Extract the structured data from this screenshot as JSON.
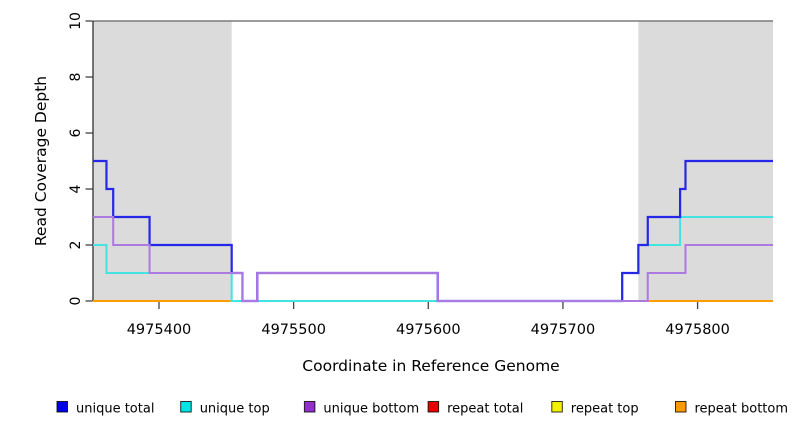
{
  "chart_data": {
    "type": "line",
    "subtype": "step-post-coverage",
    "title": "",
    "xlabel": "Coordinate in Reference Genome",
    "ylabel": "Read Coverage Depth",
    "xlim": [
      4975351,
      4975856
    ],
    "ylim": [
      0,
      10
    ],
    "x_ticks": [
      4975400,
      4975500,
      4975600,
      4975700,
      4975800
    ],
    "y_ticks": [
      0,
      2,
      4,
      6,
      8,
      10
    ],
    "grid": false,
    "shaded_regions": [
      {
        "x_start": 4975351,
        "x_end": 4975454,
        "color": "#dbdbdb"
      },
      {
        "x_start": 4975756,
        "x_end": 4975856,
        "color": "#dbdbdb"
      }
    ],
    "top_boundary_line": {
      "y": 10,
      "color": "#7b7b7b"
    },
    "colors": {
      "axis": "#222222",
      "tick": "#444444",
      "shaded_region": "#dbdbdb"
    },
    "series": [
      {
        "name": "repeat total",
        "color": "#e02020",
        "points": [
          [
            4975351,
            0
          ],
          [
            4975856,
            0
          ]
        ]
      },
      {
        "name": "repeat top",
        "color": "#f0f000",
        "points": [
          [
            4975351,
            0
          ],
          [
            4975856,
            0
          ]
        ]
      },
      {
        "name": "repeat bottom",
        "color": "#ff9d00",
        "points": [
          [
            4975351,
            0
          ],
          [
            4975856,
            0
          ]
        ]
      },
      {
        "name": "unique top",
        "color": "#45e2e2",
        "points": [
          [
            4975351,
            2
          ],
          [
            4975361,
            1
          ],
          [
            4975454,
            0
          ],
          [
            4975744,
            1
          ],
          [
            4975756,
            2
          ],
          [
            4975787,
            3
          ],
          [
            4975856,
            3
          ]
        ]
      },
      {
        "name": "unique total",
        "color": "#2727e8",
        "points": [
          [
            4975351,
            5
          ],
          [
            4975361,
            4
          ],
          [
            4975366,
            3
          ],
          [
            4975393,
            2
          ],
          [
            4975454,
            1
          ],
          [
            4975462,
            0
          ],
          [
            4975473,
            1
          ],
          [
            4975607,
            0
          ],
          [
            4975744,
            1
          ],
          [
            4975756,
            2
          ],
          [
            4975763,
            3
          ],
          [
            4975787,
            4
          ],
          [
            4975791,
            5
          ],
          [
            4975856,
            5
          ]
        ]
      },
      {
        "name": "unique bottom",
        "color": "#ab79df",
        "points": [
          [
            4975351,
            3
          ],
          [
            4975366,
            2
          ],
          [
            4975393,
            1
          ],
          [
            4975462,
            0
          ],
          [
            4975473,
            1
          ],
          [
            4975607,
            0
          ],
          [
            4975763,
            1
          ],
          [
            4975791,
            2
          ],
          [
            4975856,
            2
          ]
        ]
      }
    ],
    "legend": {
      "position": "bottom",
      "entries": [
        {
          "label": "unique total",
          "marker_color": "#0000e6"
        },
        {
          "label": "unique top",
          "marker_color": "#00e5e5"
        },
        {
          "label": "unique bottom",
          "marker_color": "#9230cc"
        },
        {
          "label": "repeat total",
          "marker_color": "#e60000"
        },
        {
          "label": "repeat top",
          "marker_color": "#f2f200"
        },
        {
          "label": "repeat bottom",
          "marker_color": "#ff9900"
        }
      ]
    }
  }
}
